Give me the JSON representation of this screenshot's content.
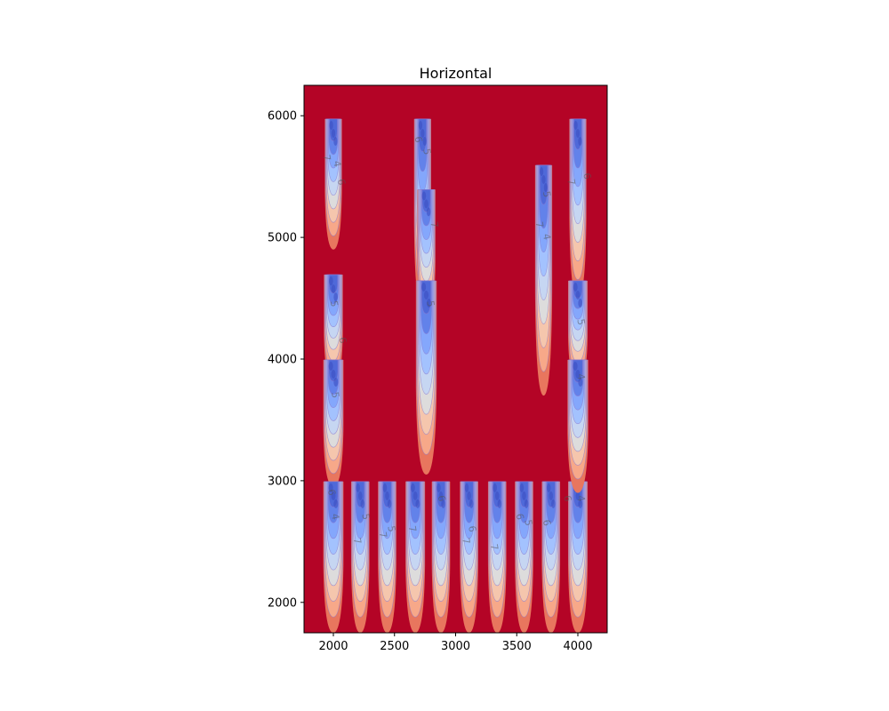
{
  "chart_data": {
    "type": "contour",
    "title": "Horizontal",
    "xlabel": "",
    "ylabel": "",
    "xlim": [
      1760,
      4240
    ],
    "ylim": [
      1750,
      6250
    ],
    "xticks": [
      2000,
      2500,
      3000,
      3500,
      4000
    ],
    "yticks": [
      2000,
      3000,
      4000,
      5000,
      6000
    ],
    "colormap": "coolwarm",
    "background_color": "#b40426",
    "level_colors": [
      "#e8765e",
      "#f7a889",
      "#f5c6ad",
      "#dddcdc",
      "#c6d6f2",
      "#a3c2fe",
      "#84a7fc",
      "#6282ea",
      "#4f69d9"
    ],
    "plumes": [
      {
        "x": 2000,
        "y_top": 5980,
        "y_tip": 4900,
        "width": 140
      },
      {
        "x": 2000,
        "y_top": 4700,
        "y_tip": 3800,
        "width": 155
      },
      {
        "x": 2000,
        "y_top": 4000,
        "y_tip": 2950,
        "width": 165
      },
      {
        "x": 2000,
        "y_top": 3000,
        "y_tip": 1750,
        "width": 165
      },
      {
        "x": 2220,
        "y_top": 3000,
        "y_tip": 1750,
        "width": 150
      },
      {
        "x": 2440,
        "y_top": 3000,
        "y_tip": 1750,
        "width": 150
      },
      {
        "x": 2670,
        "y_top": 3000,
        "y_tip": 1750,
        "width": 160
      },
      {
        "x": 2880,
        "y_top": 3000,
        "y_tip": 1750,
        "width": 150
      },
      {
        "x": 3110,
        "y_top": 3000,
        "y_tip": 1750,
        "width": 150
      },
      {
        "x": 3340,
        "y_top": 3000,
        "y_tip": 1750,
        "width": 150
      },
      {
        "x": 3560,
        "y_top": 3000,
        "y_tip": 1750,
        "width": 150
      },
      {
        "x": 3780,
        "y_top": 3000,
        "y_tip": 1750,
        "width": 150
      },
      {
        "x": 4000,
        "y_top": 3000,
        "y_tip": 1750,
        "width": 160
      },
      {
        "x": 2730,
        "y_top": 5980,
        "y_tip": 4400,
        "width": 140
      },
      {
        "x": 2760,
        "y_top": 5400,
        "y_tip": 4300,
        "width": 150
      },
      {
        "x": 2760,
        "y_top": 4650,
        "y_tip": 3050,
        "width": 170
      },
      {
        "x": 3720,
        "y_top": 5600,
        "y_tip": 3700,
        "width": 140
      },
      {
        "x": 4000,
        "y_top": 5980,
        "y_tip": 4500,
        "width": 140
      },
      {
        "x": 4000,
        "y_top": 4650,
        "y_tip": 3800,
        "width": 160
      },
      {
        "x": 4000,
        "y_top": 4000,
        "y_tip": 2900,
        "width": 170
      }
    ],
    "contour_labels": [
      {
        "text": "7",
        "x": 1920,
        "y": 5650
      },
      {
        "text": "6",
        "x": 2040,
        "y": 5450
      },
      {
        "text": "4",
        "x": 2005,
        "y": 5600
      },
      {
        "text": "5",
        "x": 1980,
        "y": 4450
      },
      {
        "text": "6",
        "x": 2050,
        "y": 4150
      },
      {
        "text": "5",
        "x": 1990,
        "y": 3700
      },
      {
        "text": "6",
        "x": 1960,
        "y": 2900
      },
      {
        "text": "4",
        "x": 1990,
        "y": 2700
      },
      {
        "text": "7",
        "x": 2170,
        "y": 2500
      },
      {
        "text": "5",
        "x": 2240,
        "y": 2700
      },
      {
        "text": "7",
        "x": 2380,
        "y": 2550
      },
      {
        "text": "5",
        "x": 2450,
        "y": 2600
      },
      {
        "text": "7",
        "x": 2620,
        "y": 2600
      },
      {
        "text": "6",
        "x": 2860,
        "y": 2850
      },
      {
        "text": "7",
        "x": 3060,
        "y": 2500
      },
      {
        "text": "6",
        "x": 3110,
        "y": 2600
      },
      {
        "text": "7",
        "x": 3290,
        "y": 2450
      },
      {
        "text": "6",
        "x": 3500,
        "y": 2700
      },
      {
        "text": "5",
        "x": 3570,
        "y": 2650
      },
      {
        "text": "6",
        "x": 3720,
        "y": 2650
      },
      {
        "text": "6",
        "x": 3890,
        "y": 2850
      },
      {
        "text": "4",
        "x": 4000,
        "y": 2850
      },
      {
        "text": "6",
        "x": 2670,
        "y": 5800
      },
      {
        "text": "5",
        "x": 2740,
        "y": 5700
      },
      {
        "text": "7",
        "x": 2800,
        "y": 5100
      },
      {
        "text": "5",
        "x": 2770,
        "y": 4450
      },
      {
        "text": "5",
        "x": 3720,
        "y": 5350
      },
      {
        "text": "7",
        "x": 3660,
        "y": 5100
      },
      {
        "text": "4",
        "x": 3720,
        "y": 5000
      },
      {
        "text": "7",
        "x": 3920,
        "y": 5450
      },
      {
        "text": "6",
        "x": 4050,
        "y": 5500
      },
      {
        "text": "5",
        "x": 4000,
        "y": 4300
      },
      {
        "text": "4",
        "x": 4000,
        "y": 3850
      }
    ]
  }
}
